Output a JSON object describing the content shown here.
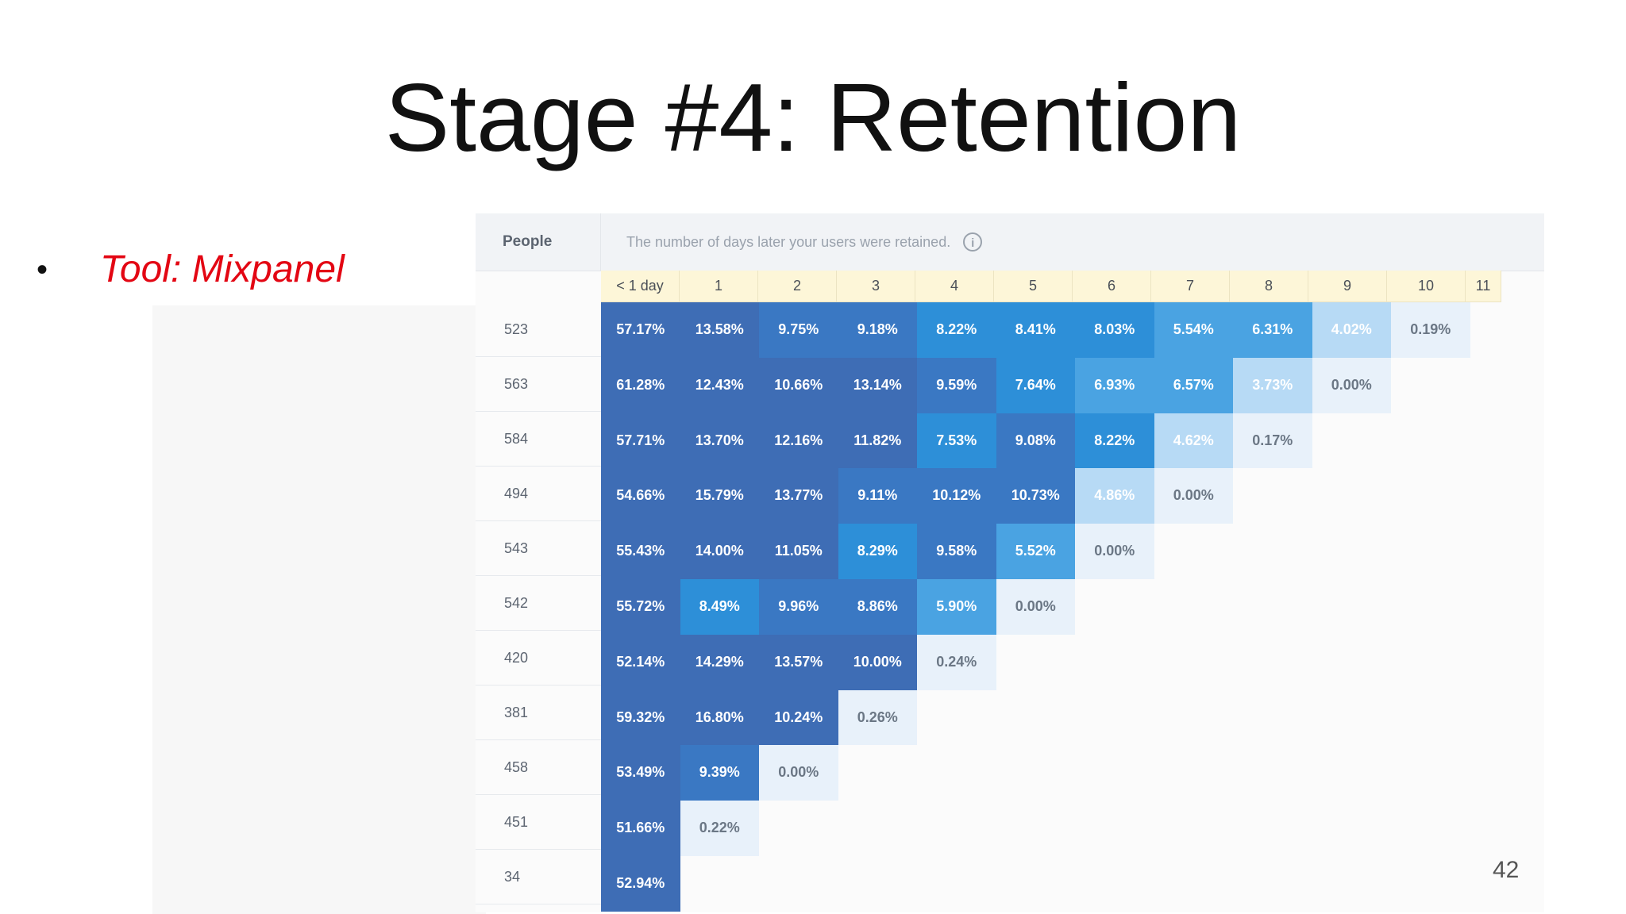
{
  "slide": {
    "title": "Stage #4: Retention",
    "bullet": "Tool: Mixpanel",
    "page_number": "42"
  },
  "retention": {
    "people_header": "People",
    "caption": "The number of days later your users were retained.",
    "info_icon": "i",
    "days": [
      "< 1 day",
      "1",
      "2",
      "3",
      "4",
      "5",
      "6",
      "7",
      "8",
      "9",
      "10",
      "11"
    ],
    "people": [
      "523",
      "563",
      "584",
      "494",
      "543",
      "542",
      "420",
      "381",
      "458",
      "451",
      "34"
    ],
    "rows": [
      [
        "57.17%",
        "13.58%",
        "9.75%",
        "9.18%",
        "8.22%",
        "8.41%",
        "8.03%",
        "5.54%",
        "6.31%",
        "4.02%",
        "0.19%"
      ],
      [
        "61.28%",
        "12.43%",
        "10.66%",
        "13.14%",
        "9.59%",
        "7.64%",
        "6.93%",
        "6.57%",
        "3.73%",
        "0.00%"
      ],
      [
        "57.71%",
        "13.70%",
        "12.16%",
        "11.82%",
        "7.53%",
        "9.08%",
        "8.22%",
        "4.62%",
        "0.17%"
      ],
      [
        "54.66%",
        "15.79%",
        "13.77%",
        "9.11%",
        "10.12%",
        "10.73%",
        "4.86%",
        "0.00%"
      ],
      [
        "55.43%",
        "14.00%",
        "11.05%",
        "8.29%",
        "9.58%",
        "5.52%",
        "0.00%"
      ],
      [
        "55.72%",
        "8.49%",
        "9.96%",
        "8.86%",
        "5.90%",
        "0.00%"
      ],
      [
        "52.14%",
        "14.29%",
        "13.57%",
        "10.00%",
        "0.24%"
      ],
      [
        "59.32%",
        "16.80%",
        "10.24%",
        "0.26%"
      ],
      [
        "53.49%",
        "9.39%",
        "0.00%"
      ],
      [
        "51.66%",
        "0.22%"
      ],
      [
        "52.94%"
      ]
    ],
    "colors": {
      "darkest": "#3e6db5",
      "dark": "#3a78c3",
      "strong": "#2d8fd8",
      "medium": "#4aa3e2",
      "light": "#7dbbec",
      "pale": "#b7daf5",
      "palest": "#e8f1fa",
      "text_light": "#ffffff",
      "text_dark": "#6b7785"
    }
  }
}
